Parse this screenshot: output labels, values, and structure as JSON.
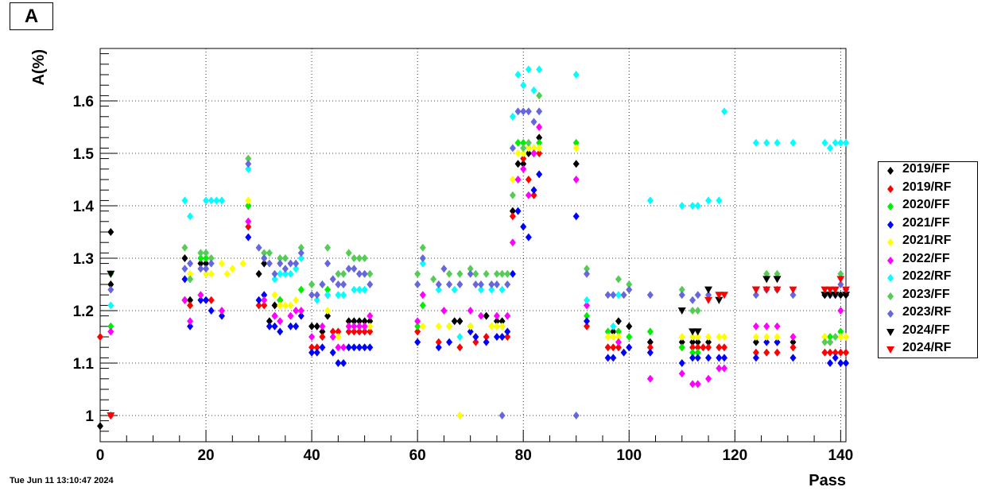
{
  "panel_label": "A",
  "timestamp": "Tue Jun 11 13:10:47 2024",
  "chart_data": {
    "type": "scatter",
    "xlabel": "Pass",
    "ylabel": "A(%)",
    "xlim": [
      0,
      141
    ],
    "ylim": [
      0.95,
      1.7
    ],
    "xticks": [
      0,
      20,
      40,
      60,
      80,
      100,
      120,
      140
    ],
    "yticks": [
      1,
      1.1,
      1.2,
      1.3,
      1.4,
      1.5,
      1.6
    ],
    "grid": true,
    "legend_position": "right",
    "series": [
      {
        "name": "2019/FF",
        "color": "#000000",
        "marker": "diamond",
        "x": [
          0,
          2,
          2,
          16,
          17,
          19,
          20,
          28,
          30,
          31,
          32,
          33,
          34,
          40,
          41,
          42,
          43,
          47,
          48,
          49,
          50,
          51,
          67,
          68,
          73,
          75,
          76,
          78,
          79,
          80,
          81,
          82,
          83,
          90,
          97,
          98,
          100,
          104,
          110,
          112,
          113,
          115,
          124,
          128,
          131,
          137,
          138,
          139,
          140,
          141
        ],
        "y": [
          0.98,
          1.25,
          1.35,
          1.3,
          1.22,
          1.29,
          1.29,
          1.4,
          1.27,
          1.29,
          1.18,
          1.21,
          1.22,
          1.17,
          1.17,
          1.16,
          1.19,
          1.18,
          1.18,
          1.18,
          1.18,
          1.18,
          1.18,
          1.18,
          1.19,
          1.18,
          1.18,
          1.39,
          1.48,
          1.48,
          1.5,
          1.5,
          1.53,
          1.48,
          1.16,
          1.18,
          1.17,
          1.14,
          1.14,
          1.14,
          1.14,
          1.14,
          1.14,
          1.14,
          1.14,
          1.23,
          1.23,
          1.23,
          1.23,
          1.23
        ]
      },
      {
        "name": "2019/RF",
        "color": "#ff0000",
        "marker": "diamond",
        "x": [
          0,
          2,
          16,
          17,
          20,
          21,
          28,
          30,
          31,
          33,
          40,
          41,
          42,
          44,
          45,
          47,
          48,
          49,
          50,
          51,
          60,
          64,
          68,
          71,
          73,
          77,
          78,
          80,
          81,
          82,
          83,
          92,
          96,
          97,
          98,
          104,
          110,
          112,
          113,
          114,
          115,
          117,
          118,
          124,
          126,
          128,
          131,
          137,
          138,
          139,
          140,
          141
        ],
        "y": [
          1.15,
          1.0,
          1.22,
          1.21,
          1.22,
          1.22,
          1.36,
          1.21,
          1.21,
          1.19,
          1.13,
          1.13,
          1.15,
          1.16,
          1.16,
          1.16,
          1.16,
          1.16,
          1.16,
          1.16,
          1.16,
          1.14,
          1.13,
          1.14,
          1.15,
          1.15,
          1.38,
          1.49,
          1.45,
          1.42,
          1.5,
          1.17,
          1.13,
          1.13,
          1.13,
          1.13,
          1.13,
          1.13,
          1.13,
          1.13,
          1.13,
          1.13,
          1.13,
          1.12,
          1.12,
          1.12,
          1.13,
          1.12,
          1.12,
          1.12,
          1.12,
          1.12
        ]
      },
      {
        "name": "2020/FF",
        "color": "#00ee00",
        "marker": "diamond",
        "x": [
          2,
          17,
          19,
          20,
          28,
          34,
          38,
          40,
          43,
          60,
          61,
          66,
          70,
          75,
          76,
          79,
          80,
          81,
          82,
          83,
          90,
          92,
          96,
          98,
          100,
          104,
          110,
          112,
          113,
          126,
          128,
          137,
          138,
          140
        ],
        "y": [
          1.17,
          1.26,
          1.3,
          1.3,
          1.4,
          1.22,
          1.24,
          1.25,
          1.24,
          1.17,
          1.21,
          1.17,
          1.17,
          1.17,
          1.17,
          1.52,
          1.52,
          1.51,
          1.51,
          1.52,
          1.52,
          1.19,
          1.16,
          1.16,
          1.15,
          1.16,
          1.13,
          1.12,
          1.12,
          1.24,
          1.24,
          1.15,
          1.15,
          1.16
        ]
      },
      {
        "name": "2021/FF",
        "color": "#0000ff",
        "marker": "diamond",
        "x": [
          16,
          17,
          19,
          20,
          21,
          23,
          28,
          30,
          31,
          32,
          33,
          34,
          36,
          37,
          38,
          40,
          41,
          42,
          44,
          45,
          46,
          47,
          48,
          49,
          50,
          51,
          60,
          64,
          66,
          70,
          71,
          73,
          75,
          76,
          77,
          78,
          79,
          80,
          81,
          82,
          83,
          90,
          92,
          96,
          97,
          99,
          100,
          104,
          110,
          112,
          113,
          115,
          117,
          118,
          124,
          126,
          128,
          131,
          138,
          139,
          140,
          141
        ],
        "y": [
          1.26,
          1.17,
          1.22,
          1.22,
          1.2,
          1.19,
          1.34,
          1.22,
          1.23,
          1.17,
          1.17,
          1.16,
          1.17,
          1.17,
          1.19,
          1.12,
          1.12,
          1.13,
          1.12,
          1.1,
          1.1,
          1.13,
          1.13,
          1.13,
          1.13,
          1.13,
          1.14,
          1.13,
          1.14,
          1.16,
          1.15,
          1.14,
          1.15,
          1.15,
          1.16,
          1.27,
          1.39,
          1.36,
          1.34,
          1.43,
          1.46,
          1.38,
          1.18,
          1.11,
          1.11,
          1.12,
          1.13,
          1.12,
          1.1,
          1.11,
          1.11,
          1.11,
          1.11,
          1.11,
          1.11,
          1.14,
          1.14,
          1.11,
          1.1,
          1.11,
          1.1,
          1.1
        ]
      },
      {
        "name": "2021/RF",
        "color": "#ffff00",
        "marker": "diamond",
        "x": [
          17,
          20,
          21,
          23,
          24,
          25,
          27,
          28,
          31,
          33,
          34,
          35,
          36,
          37,
          43,
          45,
          47,
          48,
          49,
          50,
          51,
          61,
          64,
          66,
          68,
          70,
          74,
          75,
          76,
          78,
          79,
          80,
          81,
          82,
          83,
          90,
          96,
          97,
          98,
          110,
          112,
          113,
          115,
          117,
          118,
          124,
          126,
          128,
          131,
          137,
          140,
          141
        ],
        "y": [
          1.27,
          1.27,
          1.27,
          1.29,
          1.27,
          1.28,
          1.29,
          1.41,
          1.22,
          1.23,
          1.21,
          1.21,
          1.21,
          1.22,
          1.2,
          1.15,
          1.17,
          1.17,
          1.17,
          1.17,
          1.17,
          1.17,
          1.17,
          1.17,
          1.0,
          1.17,
          1.17,
          1.17,
          1.17,
          1.45,
          1.5,
          1.5,
          1.51,
          1.51,
          1.51,
          1.51,
          1.15,
          1.15,
          1.15,
          1.15,
          1.15,
          1.15,
          1.15,
          1.15,
          1.15,
          1.15,
          1.15,
          1.15,
          1.15,
          1.15,
          1.15,
          1.15
        ]
      },
      {
        "name": "2022/FF",
        "color": "#ff00ff",
        "marker": "diamond",
        "x": [
          2,
          16,
          17,
          19,
          23,
          28,
          31,
          33,
          34,
          36,
          37,
          38,
          40,
          42,
          43,
          44,
          45,
          46,
          47,
          48,
          49,
          50,
          51,
          60,
          61,
          65,
          70,
          72,
          75,
          77,
          78,
          79,
          80,
          81,
          82,
          83,
          90,
          92,
          98,
          104,
          110,
          112,
          113,
          115,
          117,
          118,
          124,
          126,
          128,
          131,
          138,
          140
        ],
        "y": [
          1.16,
          1.22,
          1.18,
          1.23,
          1.2,
          1.37,
          1.22,
          1.19,
          1.18,
          1.19,
          1.2,
          1.2,
          1.15,
          1.17,
          1.23,
          1.15,
          1.13,
          1.13,
          1.17,
          1.17,
          1.17,
          1.17,
          1.19,
          1.18,
          1.23,
          1.2,
          1.2,
          1.19,
          1.19,
          1.19,
          1.33,
          1.45,
          1.47,
          1.42,
          1.5,
          1.55,
          1.45,
          1.21,
          1.14,
          1.07,
          1.08,
          1.06,
          1.06,
          1.07,
          1.09,
          1.09,
          1.17,
          1.17,
          1.17,
          1.15,
          1.14,
          1.2
        ]
      },
      {
        "name": "2022/RF",
        "color": "#00ffff",
        "marker": "diamond",
        "x": [
          2,
          16,
          17,
          20,
          21,
          22,
          23,
          28,
          31,
          33,
          34,
          35,
          36,
          37,
          38,
          41,
          43,
          45,
          46,
          48,
          49,
          50,
          61,
          64,
          67,
          68,
          72,
          74,
          76,
          78,
          79,
          80,
          81,
          82,
          83,
          90,
          92,
          97,
          98,
          104,
          110,
          112,
          113,
          115,
          117,
          118,
          124,
          126,
          128,
          131,
          137,
          138,
          139,
          140,
          141
        ],
        "y": [
          1.21,
          1.41,
          1.38,
          1.41,
          1.41,
          1.41,
          1.41,
          1.47,
          1.3,
          1.26,
          1.27,
          1.27,
          1.27,
          1.28,
          1.3,
          1.22,
          1.23,
          1.23,
          1.23,
          1.24,
          1.24,
          1.24,
          1.29,
          1.24,
          1.24,
          1.15,
          1.24,
          1.24,
          1.24,
          1.57,
          1.65,
          1.63,
          1.66,
          1.62,
          1.66,
          1.65,
          1.22,
          1.17,
          1.23,
          1.41,
          1.4,
          1.4,
          1.4,
          1.41,
          1.41,
          1.58,
          1.52,
          1.52,
          1.52,
          1.52,
          1.52,
          1.51,
          1.52,
          1.52,
          1.52
        ]
      },
      {
        "name": "2023/FF",
        "color": "#55cc55",
        "marker": "diamond",
        "x": [
          2,
          16,
          17,
          19,
          20,
          21,
          28,
          31,
          32,
          34,
          35,
          38,
          40,
          42,
          43,
          45,
          46,
          47,
          48,
          49,
          50,
          51,
          60,
          61,
          63,
          66,
          68,
          70,
          71,
          73,
          75,
          76,
          77,
          78,
          80,
          81,
          83,
          92,
          98,
          100,
          110,
          112,
          113,
          126,
          128,
          137,
          138,
          139,
          140
        ],
        "y": [
          1.27,
          1.32,
          1.26,
          1.31,
          1.31,
          1.3,
          1.49,
          1.31,
          1.31,
          1.3,
          1.3,
          1.32,
          1.25,
          1.25,
          1.32,
          1.27,
          1.27,
          1.31,
          1.3,
          1.3,
          1.3,
          1.27,
          1.27,
          1.32,
          1.26,
          1.27,
          1.27,
          1.28,
          1.27,
          1.27,
          1.27,
          1.27,
          1.27,
          1.42,
          1.51,
          1.52,
          1.61,
          1.28,
          1.26,
          1.25,
          1.24,
          1.2,
          1.2,
          1.27,
          1.27,
          1.14,
          1.14,
          1.15,
          1.27
        ]
      },
      {
        "name": "2023/RF",
        "color": "#6666dd",
        "marker": "diamond",
        "x": [
          2,
          16,
          17,
          19,
          20,
          21,
          28,
          30,
          31,
          32,
          33,
          34,
          35,
          36,
          37,
          38,
          40,
          41,
          42,
          43,
          44,
          45,
          46,
          47,
          48,
          49,
          50,
          51,
          60,
          61,
          64,
          65,
          66,
          68,
          70,
          71,
          72,
          74,
          75,
          76,
          77,
          78,
          79,
          80,
          81,
          82,
          83,
          90,
          92,
          96,
          97,
          99,
          100,
          104,
          110,
          112,
          113,
          115,
          124,
          126,
          128,
          131,
          138,
          139,
          140,
          141
        ],
        "y": [
          1.24,
          1.28,
          1.29,
          1.28,
          1.28,
          1.29,
          1.48,
          1.32,
          1.3,
          1.29,
          1.27,
          1.29,
          1.28,
          1.29,
          1.29,
          1.31,
          1.23,
          1.23,
          1.25,
          1.29,
          1.26,
          1.25,
          1.25,
          1.28,
          1.28,
          1.27,
          1.27,
          1.25,
          1.25,
          1.3,
          1.25,
          1.28,
          1.25,
          1.25,
          1.27,
          1.25,
          1.25,
          1.25,
          1.25,
          1.0,
          1.25,
          1.51,
          1.58,
          1.58,
          1.58,
          1.56,
          1.58,
          1.0,
          1.27,
          1.23,
          1.23,
          1.23,
          1.24,
          1.23,
          1.23,
          1.22,
          1.23,
          1.23,
          1.23,
          1.24,
          1.24,
          1.23,
          1.23,
          1.23,
          1.25,
          1.24
        ]
      },
      {
        "name": "2024/FF",
        "color": "#000000",
        "marker": "triangle-down",
        "x": [
          2,
          110,
          112,
          113,
          115,
          117,
          124,
          126,
          128,
          137,
          138,
          139,
          141
        ],
        "y": [
          1.27,
          1.2,
          1.16,
          1.16,
          1.24,
          1.22,
          1.24,
          1.26,
          1.26,
          1.23,
          1.23,
          1.23,
          1.23
        ]
      },
      {
        "name": "2024/RF",
        "color": "#ff0000",
        "marker": "triangle-down",
        "x": [
          2,
          115,
          117,
          118,
          124,
          126,
          128,
          131,
          137,
          138,
          139,
          140,
          141
        ],
        "y": [
          1.0,
          1.22,
          1.23,
          1.23,
          1.24,
          1.24,
          1.24,
          1.24,
          1.24,
          1.24,
          1.24,
          1.26,
          1.24
        ]
      }
    ]
  }
}
